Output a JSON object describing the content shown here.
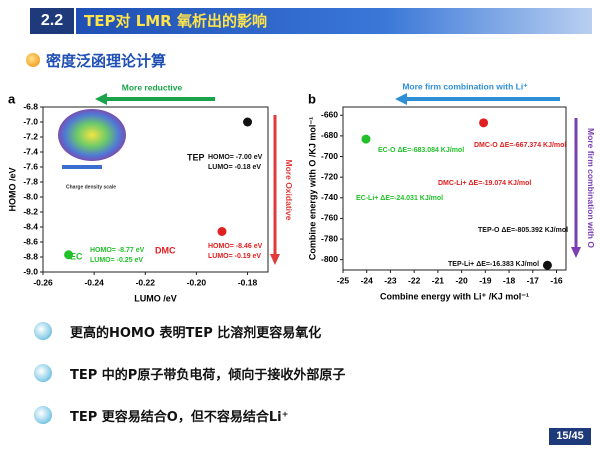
{
  "header": {
    "number": "2.2",
    "title": "TEP对 LMR 氧析出的影响"
  },
  "subtitle": "密度泛函理论计算",
  "bullets": [
    "更高的HOMO 表明TEP 比溶剂更容易氧化",
    "TEP 中的P原子带负电荷，倾向于接收外部原子",
    "TEP 更容易结合O，但不容易结合Li⁺"
  ],
  "page_number": "15/45",
  "chart_data": [
    {
      "type": "scatter",
      "panel": "a",
      "x_label": "LUMO /eV",
      "y_label": "HOMO /eV",
      "xlim": [
        -0.26,
        -0.172
      ],
      "xticks": [
        -0.26,
        -0.24,
        -0.22,
        {
          "value": -0.2,
          "label": "-0.20"
        },
        -0.18
      ],
      "ylim": [
        -9,
        -6.8
      ],
      "yticks": [
        -6.8,
        {
          "value": -7,
          "label": "-7.0"
        },
        -7.2,
        -7.4,
        -7.6,
        -7.8,
        {
          "value": -8,
          "label": "-8.0"
        },
        -8.2,
        -8.4,
        -8.6,
        -8.8,
        {
          "value": -9,
          "label": "-9.0"
        }
      ],
      "series": [
        {
          "name": "TEP",
          "color": "#111111",
          "x": [
            -0.18
          ],
          "values": [
            -7.0
          ]
        },
        {
          "name": "EC",
          "color": "#22c02a",
          "x": [
            -0.25
          ],
          "values": [
            -8.77
          ]
        },
        {
          "name": "DMC",
          "color": "#e02020",
          "x": [
            -0.19
          ],
          "values": [
            -8.46
          ]
        }
      ],
      "annotations": [
        "HOMO= -7.00 eV",
        "LUMO= -0.18 eV",
        "HOMO= -8.77 eV",
        "LUMO= -0.25 eV",
        "HOMO= -8.46 eV",
        "LUMO= -0.19 eV",
        "Charge density scale"
      ],
      "arrows": [
        {
          "text": "More reductive",
          "color": "#1aa34a"
        },
        {
          "text": "More Oxidative",
          "color": "#e03a3a"
        }
      ]
    },
    {
      "type": "scatter",
      "panel": "b",
      "x_label": "Combine energy with Li⁺ /KJ mol⁻¹",
      "y_label": "Combine energy with O /KJ mol⁻¹",
      "xlim": [
        -25,
        -15.6
      ],
      "xticks": [
        -25,
        -24,
        -23,
        -22,
        -21,
        -20,
        -19,
        -18,
        -17,
        -16
      ],
      "ylim": [
        -810,
        -652
      ],
      "yticks": [
        -660,
        -680,
        -700,
        -720,
        -740,
        -760,
        -780,
        -800
      ],
      "series": [
        {
          "color": "#22c02a",
          "x": [
            -24.031
          ],
          "values": [
            -683.084
          ]
        },
        {
          "color": "#e02020",
          "x": [
            -19.074
          ],
          "values": [
            -667.374
          ]
        },
        {
          "color": "#111111",
          "x": [
            -16.383
          ],
          "values": [
            -805.392
          ]
        }
      ],
      "annotations": [
        "EC-O  ΔE=-683.084 KJ/mol",
        "EC-Li+  ΔE=-24.031 KJ/mol",
        "DMC-O  ΔE=-667.374 KJ/mol",
        "DMC-Li+  ΔE=-19.074 KJ/mol",
        "TEP-O  ΔE=-805.392 KJ/mol",
        "TEP-Li+  ΔE=-16.383 KJ/mol"
      ],
      "arrows": [
        {
          "text": "More firm combination with Li⁺",
          "color": "#2e8fd6"
        },
        {
          "text": "More firm combination with O",
          "color": "#7a3fb0"
        }
      ]
    }
  ]
}
